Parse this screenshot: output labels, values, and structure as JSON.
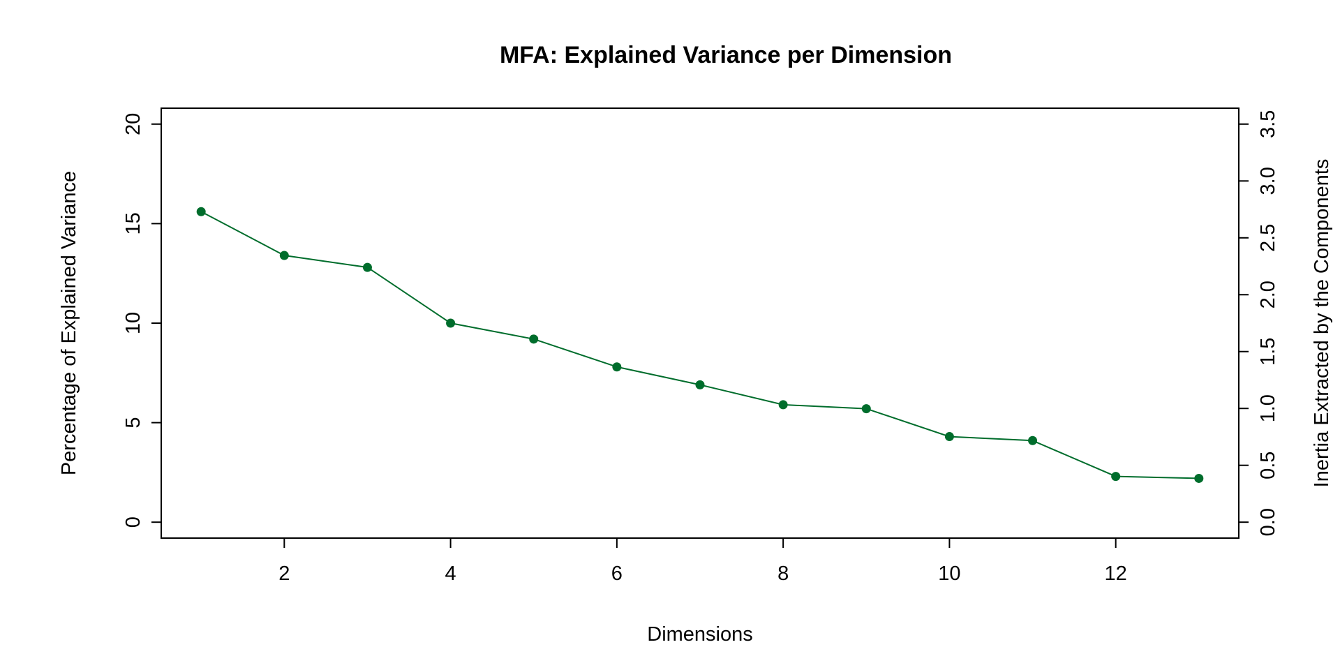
{
  "chart_data": {
    "type": "line",
    "title": "MFA: Explained Variance per Dimension",
    "xlabel": "Dimensions",
    "ylabel": "Percentage of Explained Variance",
    "y2label": "Inertia Extracted by the Components",
    "x": [
      1,
      2,
      3,
      4,
      5,
      6,
      7,
      8,
      9,
      10,
      11,
      12,
      13
    ],
    "series": [
      {
        "values": [
          15.6,
          13.4,
          12.8,
          10.0,
          9.2,
          7.8,
          6.9,
          5.9,
          5.7,
          4.3,
          4.1,
          2.3,
          2.2
        ],
        "color": "#006D2C"
      }
    ],
    "xlim": [
      0.52,
      13.48
    ],
    "ylim": [
      -0.8,
      20.8
    ],
    "xticks": [
      2,
      4,
      6,
      8,
      10,
      12
    ],
    "xtick_labels": [
      "2",
      "4",
      "6",
      "8",
      "10",
      "12"
    ],
    "yticks": [
      0,
      5,
      10,
      15,
      20
    ],
    "ytick_labels": [
      "0",
      "5",
      "10",
      "15",
      "20"
    ],
    "y2ticks": [
      0.0,
      0.5,
      1.0,
      1.5,
      2.0,
      2.5,
      3.0,
      3.5
    ],
    "y2tick_labels": [
      "0.0",
      "0.5",
      "1.0",
      "1.5",
      "2.0",
      "2.5",
      "3.0",
      "3.5"
    ],
    "y2lim": [
      -0.14,
      3.64
    ],
    "grid": false,
    "legend": "none"
  }
}
